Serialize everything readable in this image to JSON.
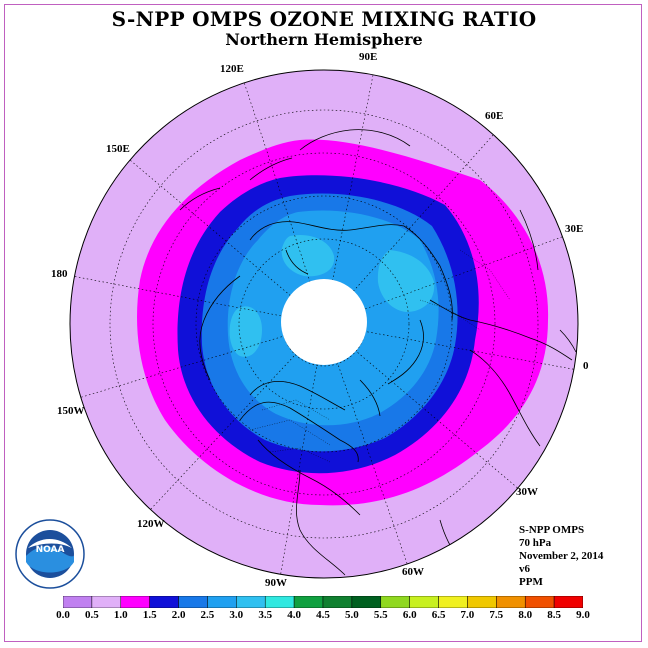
{
  "header": {
    "title": "S-NPP OMPS OZONE MIXING RATIO",
    "subtitle": "Northern Hemisphere"
  },
  "map": {
    "projection": "north-polar-stereographic",
    "longitude_labels": [
      "90E",
      "60E",
      "30E",
      "0",
      "30W",
      "60W",
      "90W",
      "120W",
      "150W",
      "180",
      "150E",
      "120E"
    ],
    "no_data_region": "polar-night"
  },
  "info": {
    "instrument": "S-NPP OMPS",
    "pressure_level": "70 hPa",
    "date": "November 2, 2014",
    "version": "v6",
    "units": "PPM"
  },
  "legend": {
    "ticks": [
      "0.0",
      "0.5",
      "1.0",
      "1.5",
      "2.0",
      "2.5",
      "3.0",
      "3.5",
      "4.0",
      "4.5",
      "5.0",
      "5.5",
      "6.0",
      "6.5",
      "7.0",
      "7.5",
      "8.0",
      "8.5",
      "9.0"
    ],
    "colors": [
      "#c080f0",
      "#e0b0f8",
      "#ff00ff",
      "#1010d8",
      "#1878e8",
      "#20a0f0",
      "#30c0f0",
      "#30e8e0",
      "#10a040",
      "#108030",
      "#006020",
      "#90d820",
      "#c8f020",
      "#f0f020",
      "#f0c800",
      "#f09000",
      "#f05000",
      "#f00000",
      "#805030"
    ]
  },
  "logo": {
    "text": "NOAA",
    "ring_text": "NATIONAL OCEANIC AND ATMOSPHERIC ADMINISTRATION · U.S. DEPARTMENT OF COMMERCE"
  },
  "field_colors": {
    "outer": "#e0b0f8",
    "band_1_0_1_5": "#ff00ff",
    "band_1_5_2_0": "#1010d8",
    "band_2_0_2_5": "#1878e8",
    "band_2_5_3_0": "#20a0f0",
    "band_3_0_3_5": "#30c0f0"
  }
}
